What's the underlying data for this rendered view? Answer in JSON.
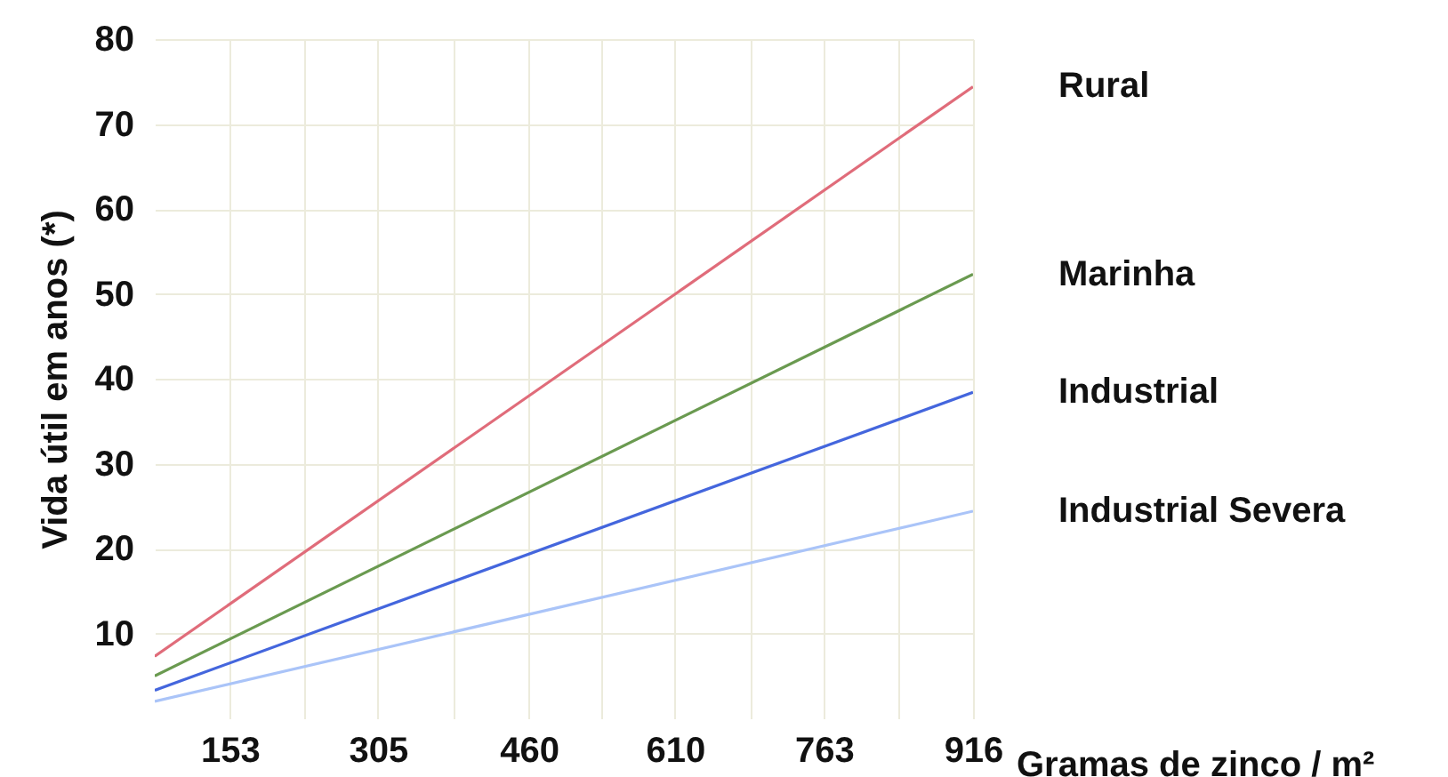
{
  "chart_data": {
    "type": "line",
    "xlabel": "Gramas de zinco / m²",
    "ylabel": "Vida útil em anos (*)",
    "xlim": [
      76,
      916
    ],
    "ylim": [
      0,
      80
    ],
    "xticks": [
      153,
      {
        "value": 229,
        "label": null
      },
      305,
      {
        "value": 382,
        "label": null
      },
      460,
      {
        "value": 535,
        "label": null
      },
      610,
      {
        "value": 687,
        "label": null
      },
      763,
      {
        "value": 840,
        "label": null
      },
      916
    ],
    "yticks": [
      10,
      20,
      30,
      40,
      50,
      60,
      70,
      80
    ],
    "grid": true,
    "x": [
      76,
      916
    ],
    "series": [
      {
        "name": "Rural",
        "color": "#e06c7a",
        "values": [
          7.3,
          74.4
        ]
      },
      {
        "name": "Marinha",
        "color": "#6a9a50",
        "values": [
          5.0,
          52.3
        ]
      },
      {
        "name": "Industrial",
        "color": "#4466dd",
        "values": [
          3.3,
          38.4
        ]
      },
      {
        "name": "Industrial Severa",
        "color": "#aac4f8",
        "values": [
          2.0,
          24.4
        ]
      }
    ]
  }
}
